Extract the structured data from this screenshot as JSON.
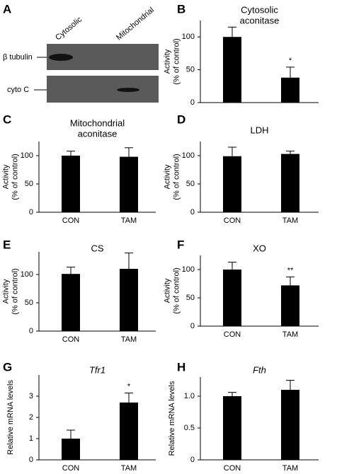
{
  "blot": {
    "panel": "A",
    "lanes": [
      "Cytosolic",
      "Mitochondrial"
    ],
    "rows": [
      "β tubulin",
      "cyto C"
    ]
  },
  "chart_data": [
    {
      "type": "bar",
      "panel": "B",
      "title": [
        "Cytosolic",
        "aconitase"
      ],
      "ylabel": [
        "Activity",
        "(% of control)"
      ],
      "values": [
        100,
        38
      ],
      "errors": [
        15,
        16
      ],
      "annotations": [
        {
          "index": 1,
          "text": "*"
        }
      ],
      "ylim": [
        0,
        125
      ],
      "yticks": [
        0,
        50,
        100
      ],
      "color": "#000000"
    },
    {
      "type": "bar",
      "panel": "C",
      "title": [
        "Mitochondrial",
        "aconitase"
      ],
      "ylabel": [
        "Activity",
        "(% of control)"
      ],
      "categories": [
        "CON",
        "TAM"
      ],
      "values": [
        100,
        98
      ],
      "errors": [
        8,
        16
      ],
      "ylim": [
        0,
        125
      ],
      "yticks": [
        0,
        50,
        100
      ],
      "color": "#000000"
    },
    {
      "type": "bar",
      "panel": "D",
      "title": [
        "LDH"
      ],
      "ylabel": [
        "Activity",
        "(% of control)"
      ],
      "categories": [
        "CON",
        "TAM"
      ],
      "values": [
        99,
        103
      ],
      "errors": [
        16,
        5
      ],
      "ylim": [
        0,
        125
      ],
      "yticks": [
        0,
        50,
        100
      ],
      "color": "#000000"
    },
    {
      "type": "bar",
      "panel": "E",
      "title": [
        "CS"
      ],
      "ylabel": [
        "Activity",
        "(% of control)"
      ],
      "categories": [
        "CON",
        "TAM"
      ],
      "values": [
        101,
        110
      ],
      "errors": [
        12,
        28
      ],
      "ylim": [
        0,
        140
      ],
      "yticks": [
        0,
        50,
        100
      ],
      "color": "#000000"
    },
    {
      "type": "bar",
      "panel": "F",
      "title": [
        "XO"
      ],
      "ylabel": [
        "Activity",
        "(% of control)"
      ],
      "categories": [
        "CON",
        "TAM"
      ],
      "values": [
        100,
        72
      ],
      "errors": [
        13,
        15
      ],
      "annotations": [
        {
          "index": 1,
          "text": "**"
        }
      ],
      "ylim": [
        0,
        125
      ],
      "yticks": [
        0,
        50,
        100
      ],
      "color": "#000000"
    },
    {
      "type": "bar",
      "panel": "G",
      "title": [
        "Tfr1"
      ],
      "italic_title": true,
      "ylabel": [
        "Relative mRNA levels"
      ],
      "categories": [
        "CON",
        "TAM"
      ],
      "values": [
        1.0,
        2.7
      ],
      "errors": [
        0.4,
        0.45
      ],
      "annotations": [
        {
          "index": 1,
          "text": "*"
        }
      ],
      "ylim": [
        0,
        4
      ],
      "yticks": [
        0,
        1,
        2,
        3
      ],
      "color": "#000000"
    },
    {
      "type": "bar",
      "panel": "H",
      "title": [
        "Fth"
      ],
      "italic_title": true,
      "ylabel": [
        "Relative mRNA levels"
      ],
      "categories": [
        "CON",
        "TAM"
      ],
      "values": [
        1.0,
        1.1
      ],
      "errors": [
        0.06,
        0.15
      ],
      "ylim": [
        0,
        1.3
      ],
      "yticks": [
        0,
        {
          "value": 0.5,
          "label": "0.5"
        },
        {
          "value": 1.0,
          "label": "1.0"
        }
      ],
      "color": "#000000"
    }
  ]
}
